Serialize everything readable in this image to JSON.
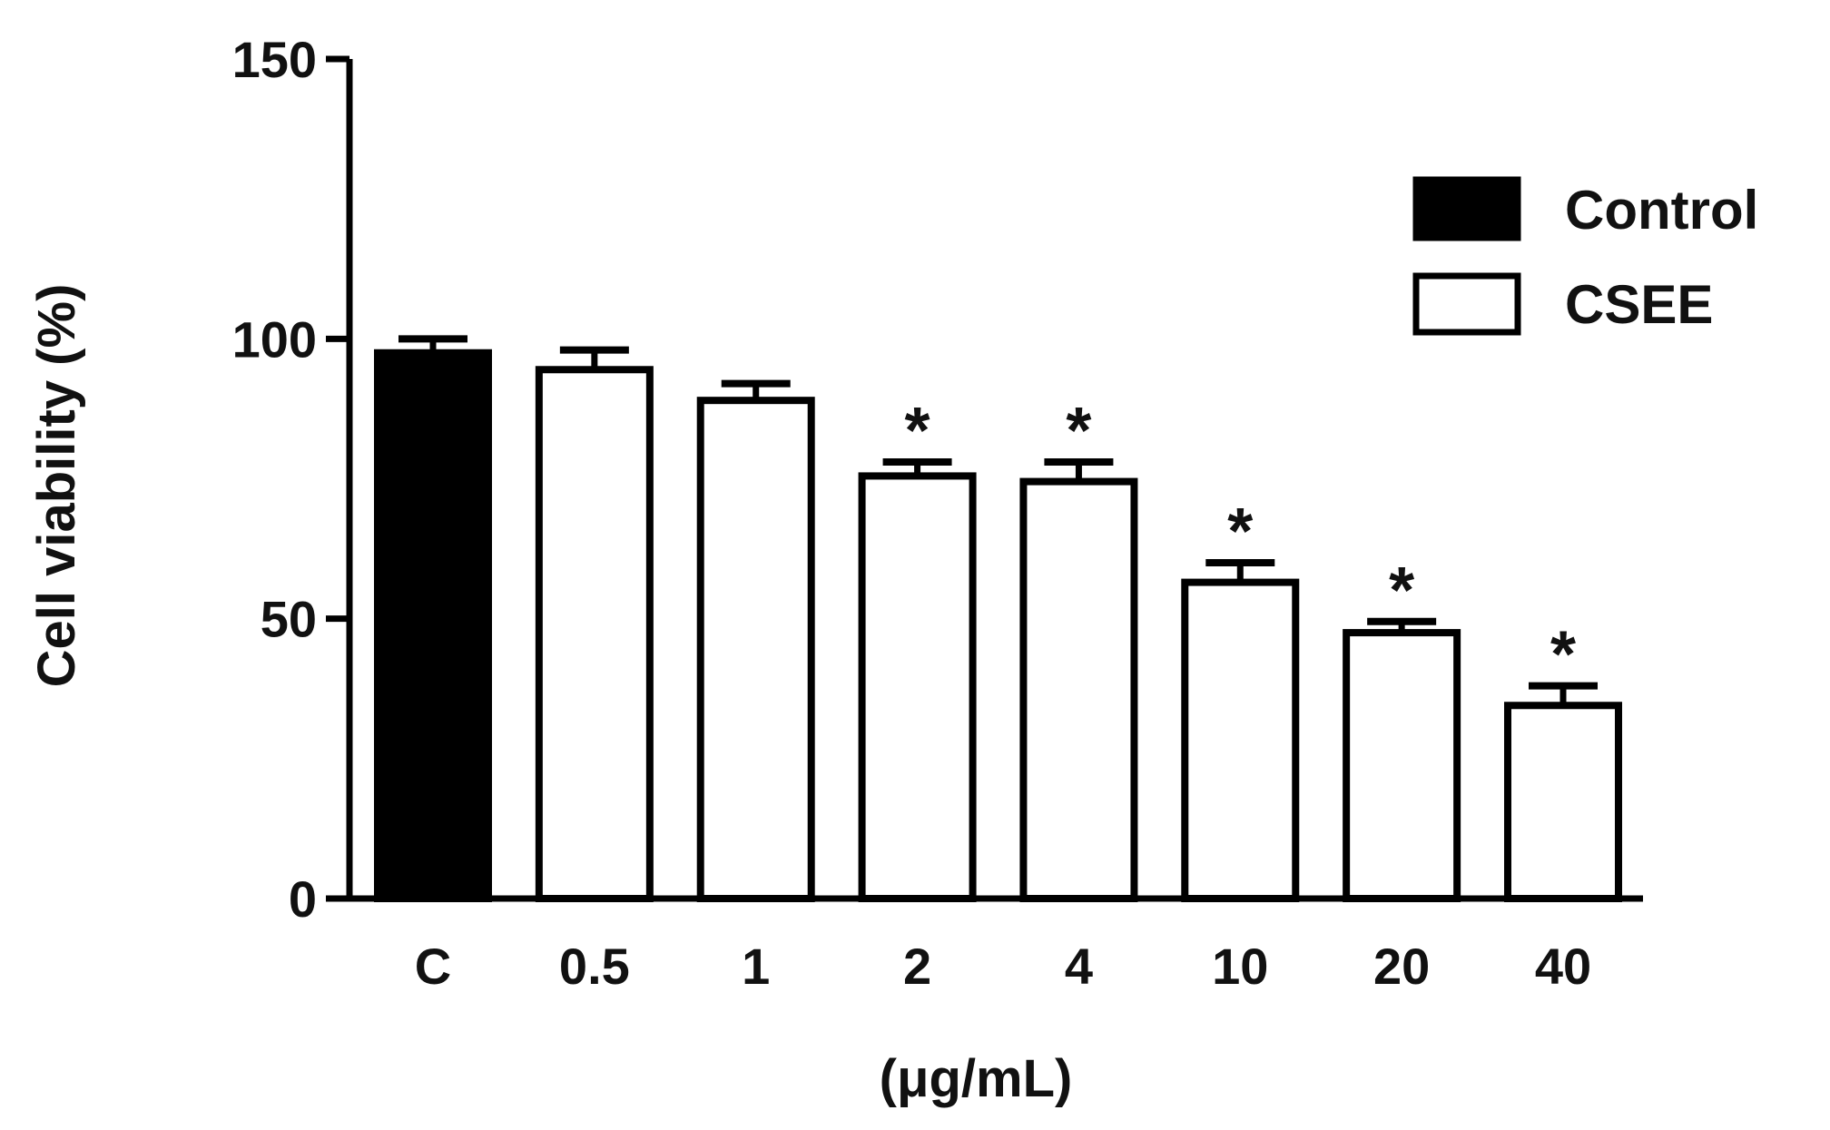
{
  "chart_data": {
    "type": "bar",
    "title": "",
    "ylabel": "Cell viability (%)",
    "xlabel": "(μg/mL)",
    "ylim": [
      0,
      150
    ],
    "yticks": [
      0,
      50,
      100,
      150
    ],
    "categories": [
      "C",
      "0.5",
      "1",
      "2",
      "4",
      "10",
      "20",
      "40"
    ],
    "values": [
      97.5,
      94.5,
      89,
      75.5,
      74.5,
      56.5,
      47.5,
      34.5
    ],
    "errors": [
      2.5,
      3.5,
      3,
      2.5,
      3.5,
      3.5,
      2,
      3.5
    ],
    "significance": [
      "",
      "",
      "",
      "*",
      "*",
      "*",
      "*",
      "*"
    ],
    "group": [
      "Control",
      "CSEE",
      "CSEE",
      "CSEE",
      "CSEE",
      "CSEE",
      "CSEE",
      "CSEE"
    ],
    "legend": {
      "position": "top-right",
      "entries": [
        {
          "label": "Control",
          "fill": "#000000"
        },
        {
          "label": "CSEE",
          "fill": "#ffffff"
        }
      ]
    },
    "grid": false,
    "colors": {
      "control": "#000000",
      "csee": "#ffffff",
      "stroke": "#000000"
    }
  }
}
